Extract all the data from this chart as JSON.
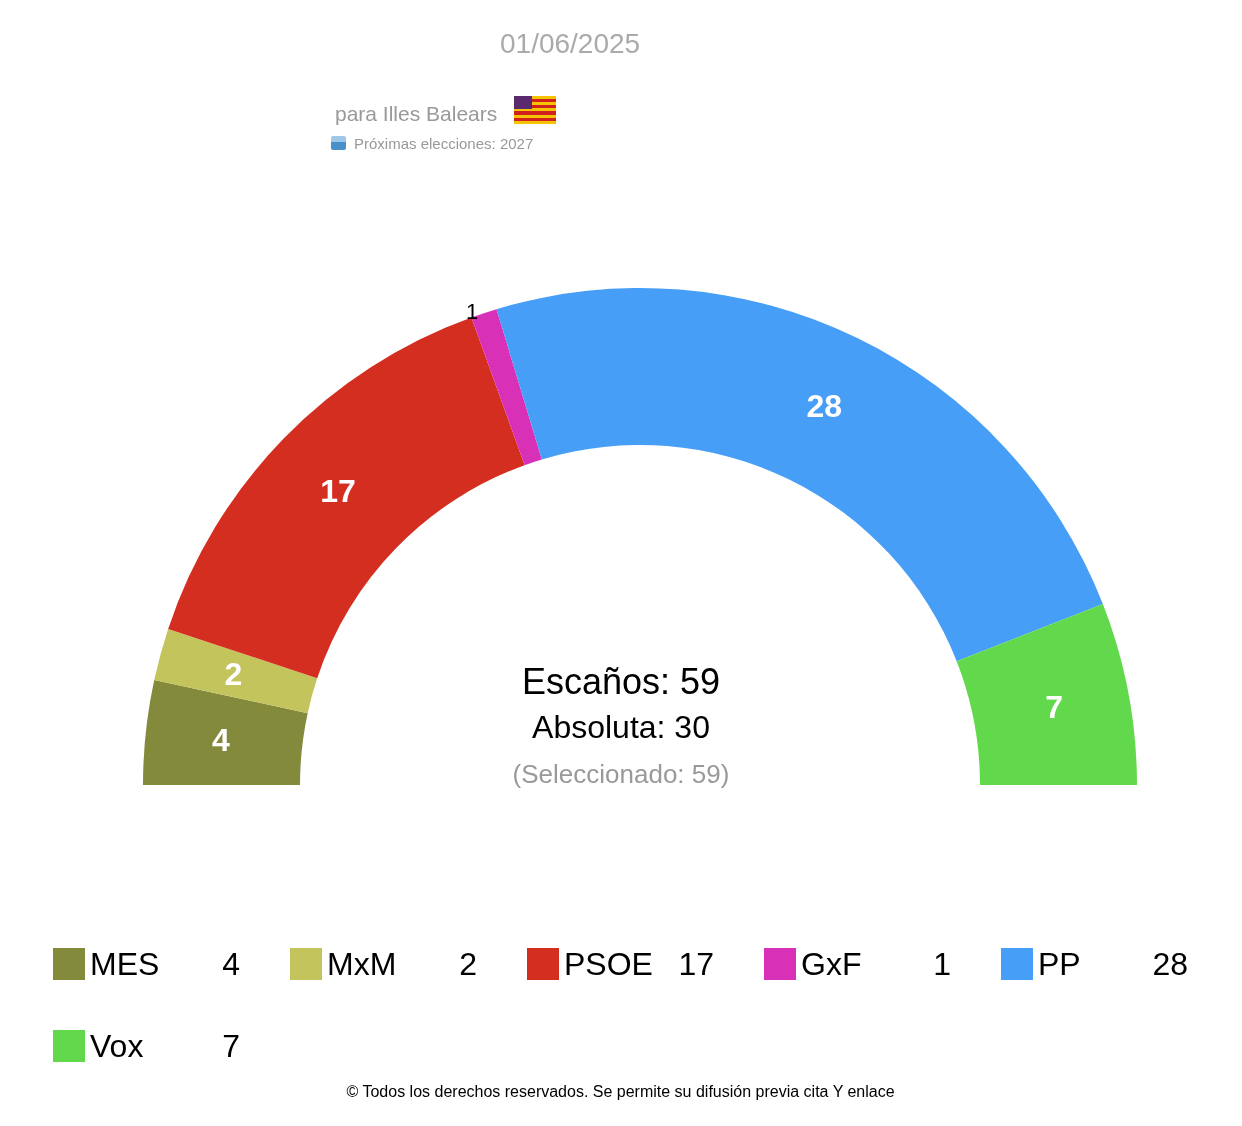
{
  "chart_data": {
    "type": "donut",
    "title": "01/06/2025",
    "subtitle": "para Illes Balears",
    "categories": [
      "MES",
      "MxM",
      "PSOE",
      "GxF",
      "PP",
      "Vox"
    ],
    "values": [
      4,
      2,
      17,
      1,
      28,
      7
    ],
    "colors": [
      "#838a3c",
      "#c4c45c",
      "#d42e20",
      "#d930b8",
      "#479ef7",
      "#62d94c"
    ],
    "value_labels": [
      "4",
      "2",
      "17",
      "1",
      "28",
      "7"
    ],
    "legend": "bottom",
    "annotations": [
      "Próximas elecciones: 2027",
      "Escaños: 59",
      "Absoluta: 30",
      "(Seleccionado: 59)",
      "© Todos los derechos reservados. Se permite su difusión previa cita Y enlace"
    ]
  }
}
